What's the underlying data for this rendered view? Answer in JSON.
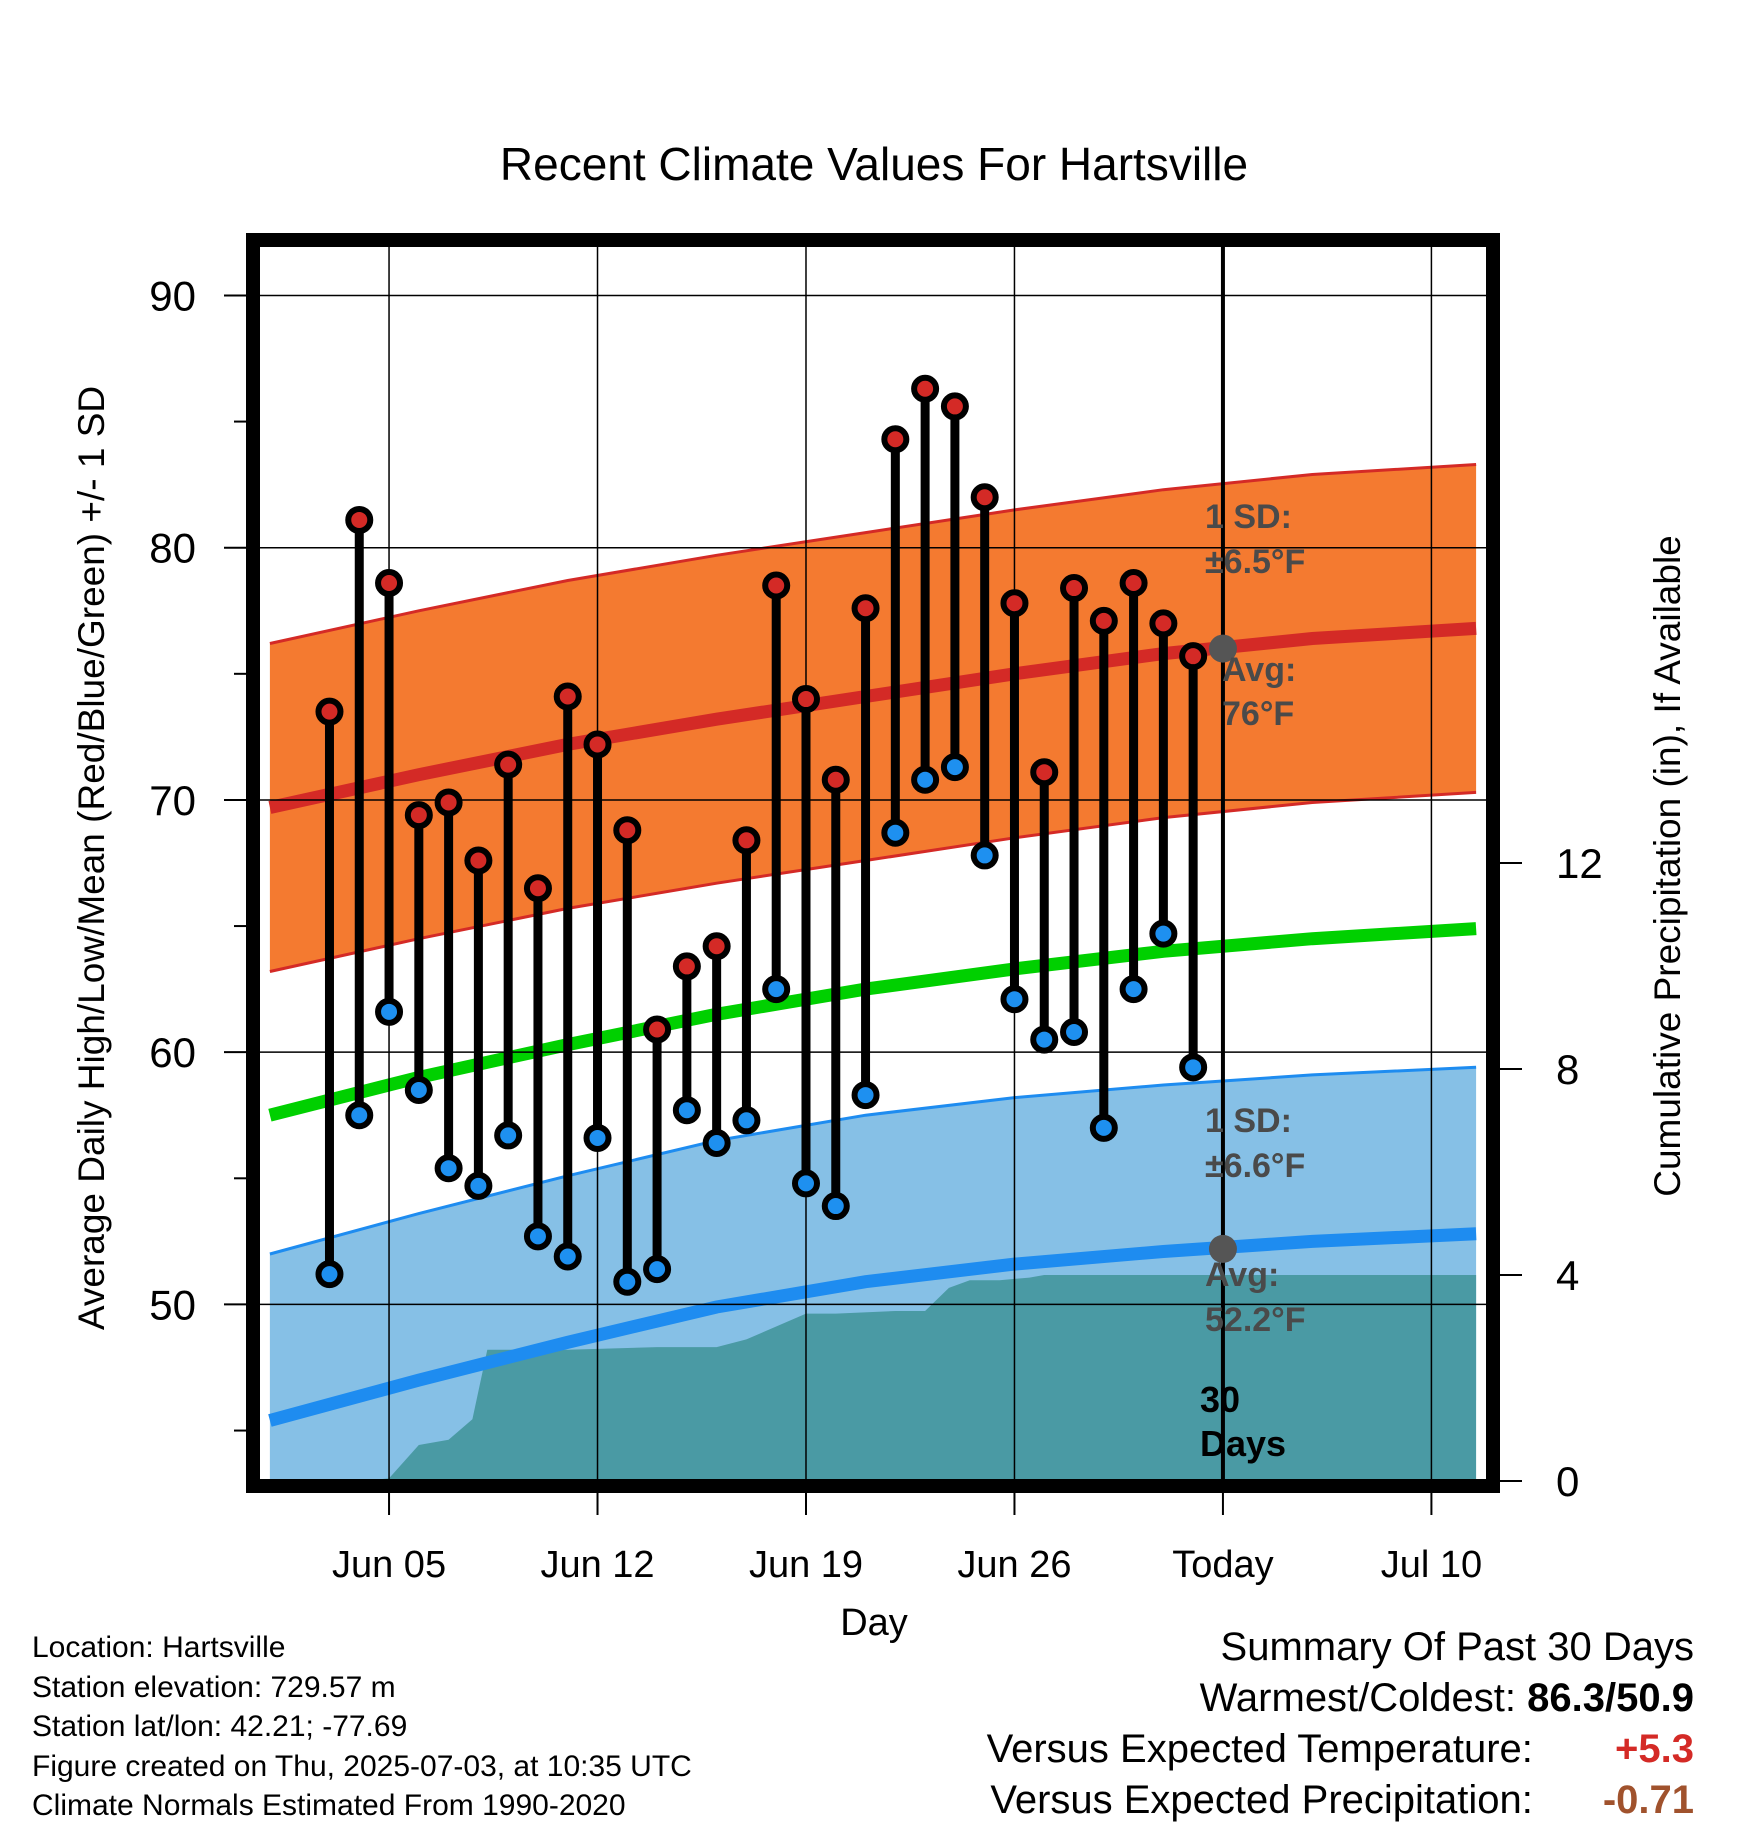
{
  "chart_data": {
    "type": "line",
    "title": "Recent Climate Values For Hartsville",
    "xlabel": "Day",
    "ylabel": "Average Daily High/Low/Mean (Red/Blue/Green) +/- 1 SD",
    "y2label": "Cumulative Precipitation (in), If Available",
    "ylim": [
      43,
      92
    ],
    "y2lim": [
      0,
      24
    ],
    "xlim": [
      -3.4,
      37.9
    ],
    "x_ticks": [
      {
        "day": 1,
        "label": "Jun 05"
      },
      {
        "day": 8,
        "label": "Jun 12"
      },
      {
        "day": 15,
        "label": "Jun 19"
      },
      {
        "day": 22,
        "label": "Jun 26"
      },
      {
        "day": 29,
        "label": "Today"
      },
      {
        "day": 36,
        "label": "Jul 10"
      }
    ],
    "y_ticks": [
      50,
      60,
      70,
      80,
      90
    ],
    "y2_ticks": [
      0,
      4,
      8,
      12
    ],
    "grid": true,
    "today_day": 29,
    "today_days_label": [
      "30",
      "Days"
    ],
    "days": [
      -1,
      0,
      1,
      2,
      3,
      4,
      5,
      6,
      7,
      8,
      9,
      10,
      11,
      12,
      13,
      14,
      15,
      16,
      17,
      18,
      19,
      20,
      21,
      22,
      23,
      24,
      25,
      26,
      27,
      28
    ],
    "daily_high": [
      73.5,
      81.1,
      78.6,
      69.4,
      69.9,
      67.6,
      71.4,
      66.5,
      74.1,
      72.2,
      68.8,
      60.9,
      63.4,
      64.2,
      68.4,
      78.5,
      74.0,
      70.8,
      77.6,
      84.3,
      86.3,
      85.6,
      82.0,
      77.8,
      71.1,
      78.4,
      77.1,
      78.6,
      77.0,
      75.7
    ],
    "daily_low": [
      51.2,
      57.5,
      61.6,
      58.5,
      55.4,
      54.7,
      56.7,
      52.7,
      51.9,
      56.6,
      50.9,
      51.4,
      57.7,
      56.4,
      57.3,
      62.5,
      54.8,
      53.9,
      58.3,
      68.7,
      70.8,
      71.3,
      67.8,
      62.1,
      60.5,
      60.8,
      57.0,
      62.5,
      64.7,
      59.4
    ],
    "normal_high": {
      "x": [
        -3,
        2,
        7,
        12,
        17,
        22,
        27,
        32,
        37.5
      ],
      "values": [
        69.7,
        71.0,
        72.2,
        73.2,
        74.1,
        75.0,
        75.8,
        76.4,
        76.8
      ]
    },
    "high_sd": 6.5,
    "normal_mean": {
      "x": [
        -3,
        2,
        7,
        12,
        17,
        22,
        27,
        32,
        37.5
      ],
      "values": [
        57.5,
        59.0,
        60.3,
        61.5,
        62.5,
        63.3,
        64.0,
        64.5,
        64.9
      ]
    },
    "normal_low": {
      "x": [
        -3,
        2,
        7,
        12,
        17,
        22,
        27,
        32,
        37.5
      ],
      "values": [
        45.4,
        47.0,
        48.5,
        49.9,
        50.9,
        51.6,
        52.1,
        52.5,
        52.8
      ]
    },
    "low_sd": 6.6,
    "precip_cumulative": {
      "x": [
        -3,
        0,
        1,
        2,
        3,
        3.8,
        4.3,
        7,
        10,
        12,
        13,
        15,
        16,
        18,
        19,
        19.8,
        20.5,
        21.5,
        22.5,
        23,
        24,
        37.5
      ],
      "values": [
        0,
        0,
        0.05,
        0.7,
        0.8,
        1.2,
        2.55,
        2.55,
        2.6,
        2.6,
        2.75,
        3.25,
        3.25,
        3.3,
        3.3,
        3.75,
        3.9,
        3.9,
        3.95,
        4.0,
        4.0,
        4.0
      ]
    },
    "annotations": {
      "high_sd_label": "1 SD:",
      "high_sd_value": "±6.5°F",
      "high_avg_label": "Avg:",
      "high_avg_value": "76°F",
      "low_sd_label": "1 SD:",
      "low_sd_value": "±6.6°F",
      "low_avg_label": "Avg:",
      "low_avg_value": "52.2°F",
      "high_avg_marker": 76,
      "low_avg_marker": 52.2
    },
    "colors": {
      "high_band": "#f47a30",
      "high_line": "#d42a26",
      "mean_line": "#00d000",
      "low_band": "#86c0e6",
      "low_line": "#1e8cf0",
      "precip": "#4a9aa4",
      "high_dot": "#d42a26",
      "low_dot": "#1e90f0",
      "annotation_text": "#4a4a4a",
      "avg_marker": "#555555"
    }
  },
  "info": {
    "location": "Location: Hartsville",
    "elevation": "Station elevation: 729.57 m",
    "latlon": "Station lat/lon: 42.21; -77.69",
    "created": "Figure created on Thu, 2025-07-03, at 10:35 UTC",
    "normals": "Climate Normals Estimated From 1990-2020"
  },
  "summary": {
    "title": "Summary Of Past 30 Days",
    "warmest_coldest_label": "Warmest/Coldest:",
    "warmest": "86.3",
    "separator": "/",
    "coldest": "50.9",
    "temp_label": "Versus Expected Temperature:",
    "temp_value": "+5.3",
    "temp_color": "#d42a26",
    "precip_label": "Versus Expected Precipitation:",
    "precip_value": "-0.71",
    "precip_color": "#a0522d"
  }
}
